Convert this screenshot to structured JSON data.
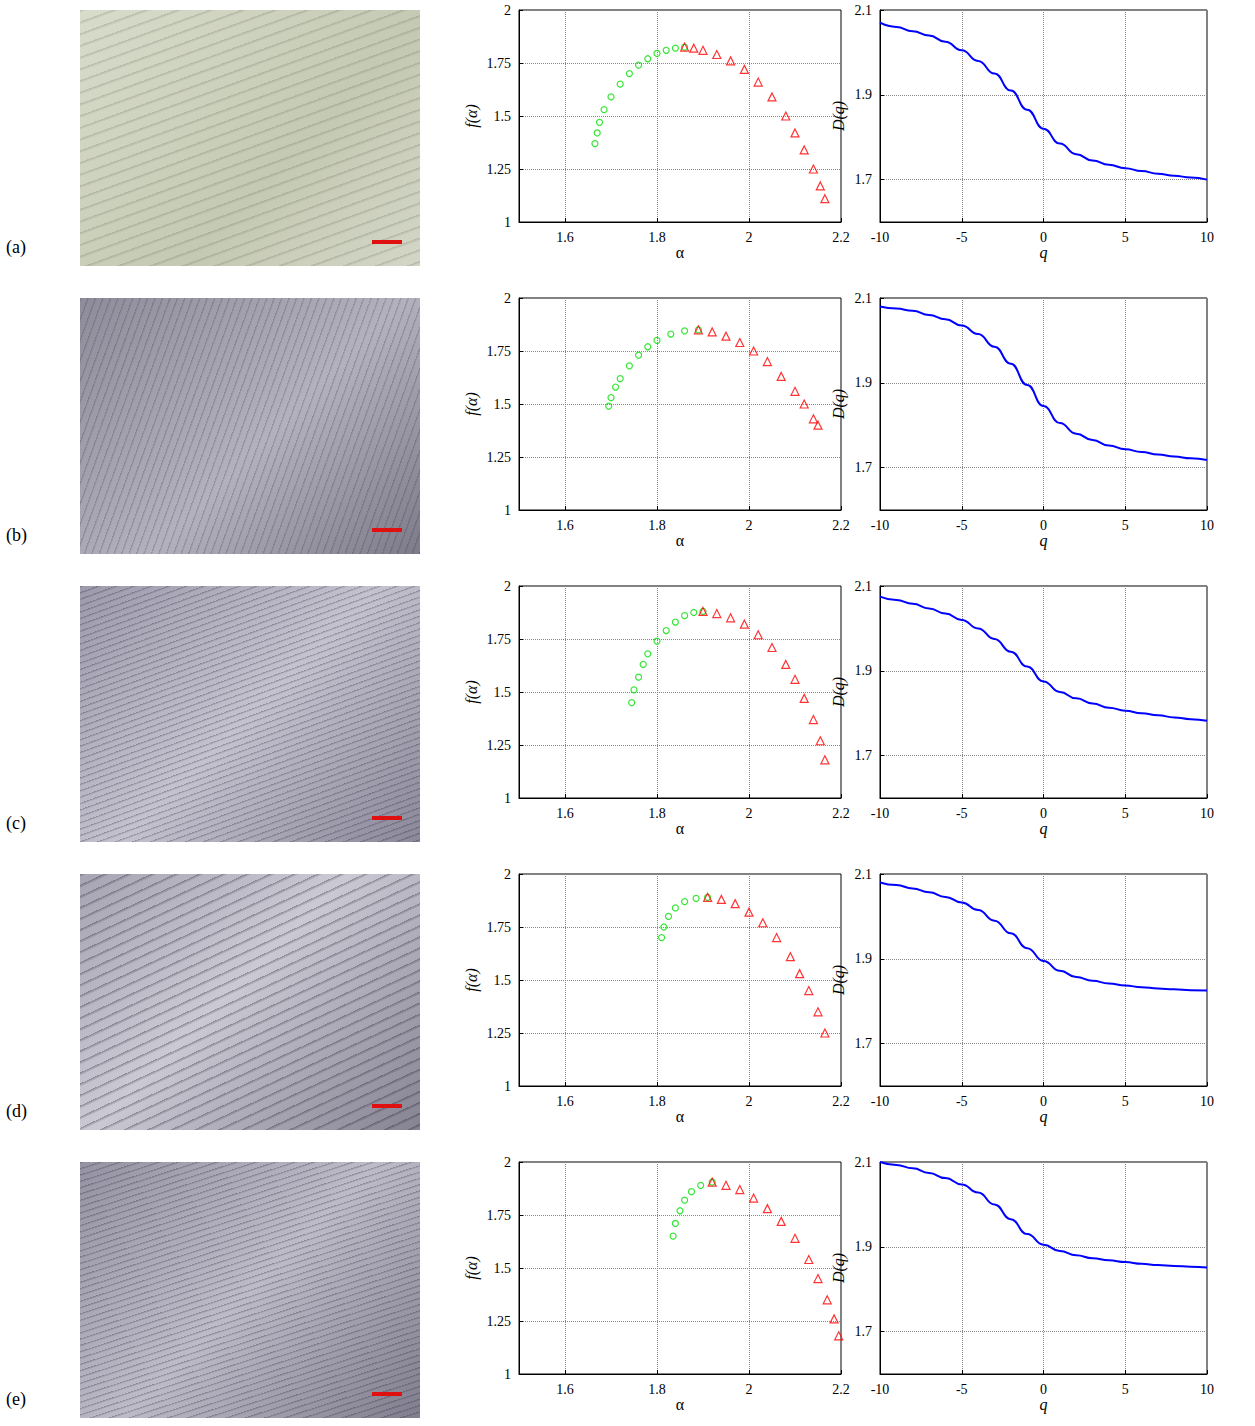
{
  "chart_data": [
    {
      "panel": "(a)",
      "type": "scatter",
      "x_label": "α",
      "y_label": "f(α)",
      "xlim": [
        1.5,
        2.2
      ],
      "xticks": [
        1.6,
        1.8,
        2,
        2.2
      ],
      "ylim": [
        1,
        2
      ],
      "yticks": [
        1,
        1.25,
        1.5,
        1.75,
        2
      ],
      "grid": true,
      "series": [
        {
          "color": "#00e000",
          "marker": "circle",
          "x": [
            1.665,
            1.67,
            1.675,
            1.685,
            1.7,
            1.72,
            1.74,
            1.76,
            1.78,
            1.8,
            1.82,
            1.84,
            1.86
          ],
          "values": [
            1.37,
            1.42,
            1.47,
            1.53,
            1.59,
            1.65,
            1.7,
            1.74,
            1.77,
            1.795,
            1.81,
            1.82,
            1.825
          ]
        },
        {
          "color": "#ff0000",
          "marker": "triangle",
          "x": [
            1.86,
            1.88,
            1.9,
            1.93,
            1.96,
            1.99,
            2.02,
            2.05,
            2.08,
            2.1,
            2.12,
            2.14,
            2.155,
            2.165
          ],
          "values": [
            1.825,
            1.82,
            1.81,
            1.79,
            1.76,
            1.72,
            1.66,
            1.59,
            1.5,
            1.42,
            1.34,
            1.25,
            1.17,
            1.11
          ]
        }
      ]
    },
    {
      "type": "line",
      "x_label": "q",
      "y_label": "D(q)",
      "xlim": [
        -10,
        10
      ],
      "xticks": [
        -10,
        -5,
        0,
        5,
        10
      ],
      "ylim": [
        1.6,
        2.1
      ],
      "yticks": [
        1.7,
        1.9,
        2.1
      ],
      "grid": true,
      "x": [
        -10,
        -9,
        -8,
        -7,
        -6,
        -5,
        -4,
        -3,
        -2,
        -1,
        0,
        1,
        2,
        3,
        4,
        5,
        6,
        7,
        8,
        9,
        10
      ],
      "series": [
        {
          "color": "#0000ff",
          "line_style": "solid",
          "values": [
            2.07,
            2.06,
            2.05,
            2.04,
            2.025,
            2.005,
            1.98,
            1.95,
            1.91,
            1.865,
            1.82,
            1.785,
            1.76,
            1.745,
            1.735,
            1.727,
            1.72,
            1.714,
            1.709,
            1.705,
            1.7
          ]
        }
      ]
    },
    {
      "panel": "(b)",
      "type": "scatter",
      "x_label": "α",
      "y_label": "f(α)",
      "xlim": [
        1.5,
        2.2
      ],
      "xticks": [
        1.6,
        1.8,
        2,
        2.2
      ],
      "ylim": [
        1,
        2
      ],
      "yticks": [
        1,
        1.25,
        1.5,
        1.75,
        2
      ],
      "grid": true,
      "series": [
        {
          "color": "#00e000",
          "marker": "circle",
          "x": [
            1.695,
            1.7,
            1.71,
            1.72,
            1.74,
            1.76,
            1.78,
            1.8,
            1.83,
            1.86,
            1.89
          ],
          "values": [
            1.49,
            1.53,
            1.58,
            1.62,
            1.68,
            1.73,
            1.77,
            1.8,
            1.83,
            1.845,
            1.85
          ]
        },
        {
          "color": "#ff0000",
          "marker": "triangle",
          "x": [
            1.89,
            1.92,
            1.95,
            1.98,
            2.01,
            2.04,
            2.07,
            2.1,
            2.12,
            2.14,
            2.15
          ],
          "values": [
            1.85,
            1.84,
            1.82,
            1.79,
            1.75,
            1.7,
            1.63,
            1.56,
            1.5,
            1.43,
            1.4
          ]
        }
      ]
    },
    {
      "type": "line",
      "x_label": "q",
      "y_label": "D(q)",
      "xlim": [
        -10,
        10
      ],
      "xticks": [
        -10,
        -5,
        0,
        5,
        10
      ],
      "ylim": [
        1.6,
        2.1
      ],
      "yticks": [
        1.7,
        1.9,
        2.1
      ],
      "grid": true,
      "x": [
        -10,
        -9,
        -8,
        -7,
        -6,
        -5,
        -4,
        -3,
        -2,
        -1,
        0,
        1,
        2,
        3,
        4,
        5,
        6,
        7,
        8,
        9,
        10
      ],
      "series": [
        {
          "color": "#0000ff",
          "line_style": "solid",
          "values": [
            2.08,
            2.075,
            2.07,
            2.06,
            2.05,
            2.035,
            2.015,
            1.985,
            1.945,
            1.895,
            1.845,
            1.805,
            1.78,
            1.765,
            1.752,
            1.743,
            1.737,
            1.731,
            1.726,
            1.722,
            1.718
          ]
        }
      ]
    },
    {
      "panel": "(c)",
      "type": "scatter",
      "x_label": "α",
      "y_label": "f(α)",
      "xlim": [
        1.5,
        2.2
      ],
      "xticks": [
        1.6,
        1.8,
        2,
        2.2
      ],
      "ylim": [
        1,
        2
      ],
      "yticks": [
        1,
        1.25,
        1.5,
        1.75,
        2
      ],
      "grid": true,
      "series": [
        {
          "color": "#00e000",
          "marker": "circle",
          "x": [
            1.745,
            1.75,
            1.76,
            1.77,
            1.78,
            1.8,
            1.82,
            1.84,
            1.86,
            1.88,
            1.9
          ],
          "values": [
            1.45,
            1.51,
            1.57,
            1.63,
            1.68,
            1.74,
            1.79,
            1.83,
            1.86,
            1.875,
            1.88
          ]
        },
        {
          "color": "#ff0000",
          "marker": "triangle",
          "x": [
            1.9,
            1.93,
            1.96,
            1.99,
            2.02,
            2.05,
            2.08,
            2.1,
            2.12,
            2.14,
            2.155,
            2.165
          ],
          "values": [
            1.88,
            1.87,
            1.85,
            1.82,
            1.77,
            1.71,
            1.63,
            1.56,
            1.47,
            1.37,
            1.27,
            1.18
          ]
        }
      ]
    },
    {
      "type": "line",
      "x_label": "q",
      "y_label": "D(q)",
      "xlim": [
        -10,
        10
      ],
      "xticks": [
        -10,
        -5,
        0,
        5,
        10
      ],
      "ylim": [
        1.6,
        2.1
      ],
      "yticks": [
        1.7,
        1.9,
        2.1
      ],
      "grid": true,
      "x": [
        -10,
        -9,
        -8,
        -7,
        -6,
        -5,
        -4,
        -3,
        -2,
        -1,
        0,
        1,
        2,
        3,
        4,
        5,
        6,
        7,
        8,
        9,
        10
      ],
      "series": [
        {
          "color": "#0000ff",
          "line_style": "solid",
          "values": [
            2.075,
            2.067,
            2.058,
            2.047,
            2.035,
            2.02,
            2.0,
            1.975,
            1.945,
            1.91,
            1.875,
            1.85,
            1.835,
            1.823,
            1.813,
            1.806,
            1.8,
            1.795,
            1.79,
            1.786,
            1.782
          ]
        }
      ]
    },
    {
      "panel": "(d)",
      "type": "scatter",
      "x_label": "α",
      "y_label": "f(α)",
      "xlim": [
        1.5,
        2.2
      ],
      "xticks": [
        1.6,
        1.8,
        2,
        2.2
      ],
      "ylim": [
        1,
        2
      ],
      "yticks": [
        1,
        1.25,
        1.5,
        1.75,
        2
      ],
      "grid": true,
      "series": [
        {
          "color": "#00e000",
          "marker": "circle",
          "x": [
            1.81,
            1.815,
            1.825,
            1.84,
            1.86,
            1.885,
            1.91
          ],
          "values": [
            1.7,
            1.75,
            1.8,
            1.84,
            1.87,
            1.885,
            1.89
          ]
        },
        {
          "color": "#ff0000",
          "marker": "triangle",
          "x": [
            1.91,
            1.94,
            1.97,
            2.0,
            2.03,
            2.06,
            2.09,
            2.11,
            2.13,
            2.15,
            2.165
          ],
          "values": [
            1.89,
            1.88,
            1.86,
            1.82,
            1.77,
            1.7,
            1.61,
            1.53,
            1.45,
            1.35,
            1.25
          ]
        }
      ]
    },
    {
      "type": "line",
      "x_label": "q",
      "y_label": "D(q)",
      "xlim": [
        -10,
        10
      ],
      "xticks": [
        -10,
        -5,
        0,
        5,
        10
      ],
      "ylim": [
        1.6,
        2.1
      ],
      "yticks": [
        1.7,
        1.9,
        2.1
      ],
      "grid": true,
      "x": [
        -10,
        -9,
        -8,
        -7,
        -6,
        -5,
        -4,
        -3,
        -2,
        -1,
        0,
        1,
        2,
        3,
        4,
        5,
        6,
        7,
        8,
        9,
        10
      ],
      "series": [
        {
          "color": "#0000ff",
          "line_style": "solid",
          "values": [
            2.08,
            2.074,
            2.066,
            2.057,
            2.046,
            2.033,
            2.015,
            1.99,
            1.96,
            1.925,
            1.895,
            1.872,
            1.857,
            1.848,
            1.842,
            1.837,
            1.833,
            1.83,
            1.828,
            1.826,
            1.825
          ]
        }
      ]
    },
    {
      "panel": "(e)",
      "type": "scatter",
      "x_label": "α",
      "y_label": "f(α)",
      "xlim": [
        1.5,
        2.2
      ],
      "xticks": [
        1.6,
        1.8,
        2,
        2.2
      ],
      "ylim": [
        1,
        2
      ],
      "yticks": [
        1,
        1.25,
        1.5,
        1.75,
        2
      ],
      "grid": true,
      "series": [
        {
          "color": "#00e000",
          "marker": "circle",
          "x": [
            1.835,
            1.84,
            1.85,
            1.86,
            1.875,
            1.895,
            1.92
          ],
          "values": [
            1.65,
            1.71,
            1.77,
            1.82,
            1.86,
            1.89,
            1.905
          ]
        },
        {
          "color": "#ff0000",
          "marker": "triangle",
          "x": [
            1.92,
            1.95,
            1.98,
            2.01,
            2.04,
            2.07,
            2.1,
            2.13,
            2.15,
            2.17,
            2.185,
            2.195
          ],
          "values": [
            1.905,
            1.89,
            1.87,
            1.83,
            1.78,
            1.72,
            1.64,
            1.54,
            1.45,
            1.35,
            1.26,
            1.18
          ]
        }
      ]
    },
    {
      "type": "line",
      "x_label": "q",
      "y_label": "D(q)",
      "xlim": [
        -10,
        10
      ],
      "xticks": [
        -10,
        -5,
        0,
        5,
        10
      ],
      "ylim": [
        1.6,
        2.1
      ],
      "yticks": [
        1.7,
        1.9,
        2.1
      ],
      "grid": true,
      "x": [
        -10,
        -9,
        -8,
        -7,
        -6,
        -5,
        -4,
        -3,
        -2,
        -1,
        0,
        1,
        2,
        3,
        4,
        5,
        6,
        7,
        8,
        9,
        10
      ],
      "series": [
        {
          "color": "#0000ff",
          "line_style": "solid",
          "values": [
            2.1,
            2.093,
            2.085,
            2.074,
            2.062,
            2.047,
            2.028,
            2.0,
            1.965,
            1.93,
            1.905,
            1.89,
            1.88,
            1.873,
            1.868,
            1.864,
            1.86,
            1.857,
            1.855,
            1.853,
            1.851
          ]
        }
      ]
    }
  ]
}
